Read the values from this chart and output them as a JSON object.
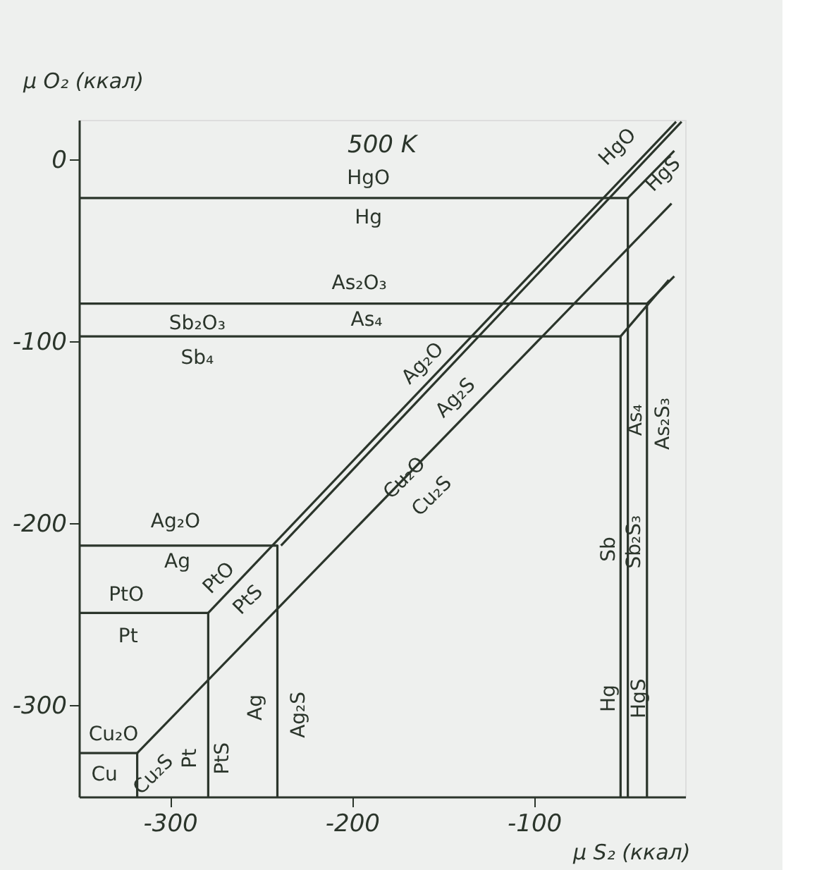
{
  "chart_data": {
    "type": "line",
    "title": "500 K",
    "xlabel": "μ S₂ (ккал)",
    "ylabel": "μ O₂ (ккал)",
    "xlim": [
      -350,
      -17
    ],
    "ylim": [
      -350,
      22
    ],
    "xticks": [
      -300,
      -200,
      -100
    ],
    "yticks": [
      0,
      -100,
      -200,
      -300
    ],
    "grid": false,
    "legend": false,
    "marker": "none",
    "line_style": "solid",
    "series": [
      {
        "color": "#2b352b",
        "x": [
          -350,
          -48.5,
          -48.5
        ],
        "values": [
          -21,
          -21,
          -350
        ]
      },
      {
        "color": "#2b352b",
        "x": [
          -350,
          -38,
          -38
        ],
        "values": [
          -79,
          -79,
          -350
        ]
      },
      {
        "color": "#2b352b",
        "x": [
          -350,
          -52.5,
          -52.5
        ],
        "values": [
          -97,
          -97,
          -350
        ]
      },
      {
        "color": "#2b352b",
        "x": [
          -350,
          -241,
          -241
        ],
        "values": [
          -212,
          -212,
          -350
        ]
      },
      {
        "color": "#2b352b",
        "x": [
          -350,
          -279,
          -279
        ],
        "values": [
          -249,
          -249,
          -350
        ]
      },
      {
        "color": "#2b352b",
        "x": [
          -350,
          -318,
          -318
        ],
        "values": [
          -326,
          -326,
          -350
        ]
      },
      {
        "color": "#2b352b",
        "x": [
          -318,
          -24.5
        ],
        "values": [
          -326,
          -24
        ]
      },
      {
        "color": "#2b352b",
        "x": [
          -279,
          -22
        ],
        "values": [
          -249,
          21
        ]
      },
      {
        "color": "#2b352b",
        "x": [
          -239,
          -19
        ],
        "values": [
          -212,
          21
        ]
      },
      {
        "color": "#2b352b",
        "x": [
          -48.5,
          -23
        ],
        "values": [
          -21,
          5
        ]
      },
      {
        "color": "#2b352b",
        "x": [
          -38,
          -23
        ],
        "values": [
          -79,
          -64
        ]
      },
      {
        "color": "#2b352b",
        "x": [
          -52.5,
          -26
        ],
        "values": [
          -97,
          -66
        ]
      }
    ],
    "annotations": [
      "HgO",
      "Hg",
      "As₂O₃",
      "As₄",
      "Sb₂O₃",
      "Sb₄",
      "Ag₂O",
      "Ag",
      "PtO",
      "Pt",
      "Cu₂O",
      "Cu",
      "HgO",
      "HgS",
      "Ag₂O",
      "Ag₂S",
      "Cu₂O",
      "Cu₂S",
      "PtO",
      "PtS",
      "Cu₂S",
      "Pt",
      "PtS",
      "Ag",
      "Ag₂S",
      "As₄",
      "As₂S₃",
      "Sb",
      "Sb₂S₃",
      "Hg",
      "HgS"
    ]
  }
}
